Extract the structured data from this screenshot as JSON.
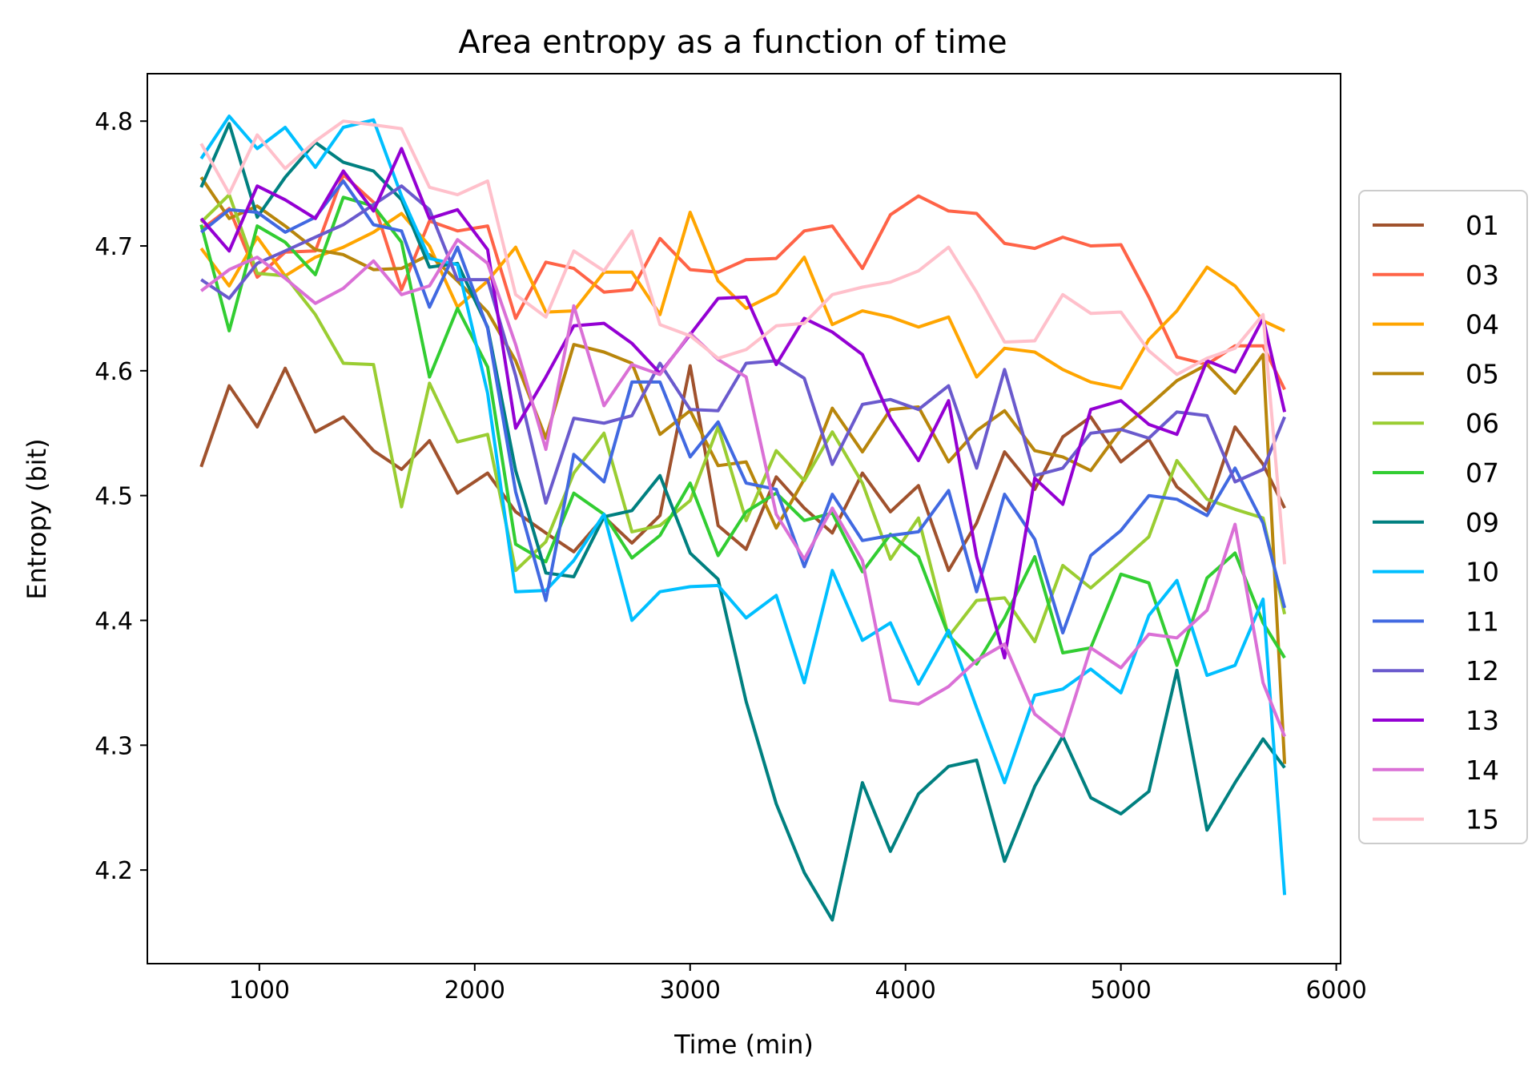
{
  "chart_data": {
    "type": "line",
    "title": "Area entropy as a function of time",
    "xlabel": "Time (min)",
    "ylabel": "Entropy (bit)",
    "xlim": [
      480,
      6020
    ],
    "ylim": [
      4.125,
      4.838
    ],
    "xticks": [
      1000,
      2000,
      3000,
      4000,
      5000,
      6000
    ],
    "yticks": [
      4.2,
      4.3,
      4.4,
      4.5,
      4.6,
      4.7,
      4.8
    ],
    "grid": false,
    "legend_position": "right",
    "x": [
      730,
      860,
      990,
      1120,
      1260,
      1390,
      1530,
      1660,
      1790,
      1920,
      2060,
      2190,
      2330,
      2460,
      2600,
      2730,
      2860,
      3000,
      3130,
      3260,
      3400,
      3530,
      3660,
      3800,
      3930,
      4060,
      4200,
      4330,
      4460,
      4600,
      4730,
      4860,
      5000,
      5130,
      5260,
      5400,
      5530,
      5660,
      5760
    ],
    "series": [
      {
        "name": "01",
        "color": "#a0522d",
        "values": [
          4.523,
          4.588,
          4.555,
          4.602,
          4.551,
          4.563,
          4.536,
          4.521,
          4.544,
          4.502,
          4.518,
          4.487,
          4.47,
          4.455,
          4.483,
          4.462,
          4.484,
          4.604,
          4.476,
          4.457,
          4.515,
          4.49,
          4.47,
          4.518,
          4.487,
          4.508,
          4.44,
          4.478,
          4.535,
          4.505,
          4.547,
          4.563,
          4.527,
          4.545,
          4.507,
          4.488,
          4.555,
          4.525,
          4.49
        ]
      },
      {
        "name": "03",
        "color": "#ff6347",
        "values": [
          4.713,
          4.73,
          4.675,
          4.695,
          4.696,
          4.757,
          4.735,
          4.665,
          4.72,
          4.712,
          4.716,
          4.642,
          4.687,
          4.682,
          4.663,
          4.665,
          4.706,
          4.681,
          4.679,
          4.689,
          4.69,
          4.712,
          4.716,
          4.682,
          4.725,
          4.74,
          4.728,
          4.726,
          4.702,
          4.698,
          4.707,
          4.7,
          4.701,
          4.659,
          4.611,
          4.605,
          4.62,
          4.62,
          4.585
        ]
      },
      {
        "name": "04",
        "color": "#ffa500",
        "values": [
          4.698,
          4.668,
          4.707,
          4.676,
          4.691,
          4.699,
          4.711,
          4.726,
          4.7,
          4.651,
          4.672,
          4.699,
          4.647,
          4.648,
          4.679,
          4.679,
          4.645,
          4.727,
          4.672,
          4.65,
          4.662,
          4.691,
          4.637,
          4.648,
          4.643,
          4.635,
          4.643,
          4.595,
          4.618,
          4.615,
          4.601,
          4.591,
          4.586,
          4.625,
          4.648,
          4.683,
          4.668,
          4.64,
          4.632
        ]
      },
      {
        "name": "05",
        "color": "#b8860b",
        "values": [
          4.755,
          4.722,
          4.732,
          4.716,
          4.697,
          4.693,
          4.681,
          4.682,
          4.693,
          4.672,
          4.647,
          4.608,
          4.546,
          4.621,
          4.615,
          4.606,
          4.549,
          4.568,
          4.524,
          4.527,
          4.474,
          4.513,
          4.57,
          4.535,
          4.569,
          4.571,
          4.527,
          4.552,
          4.568,
          4.536,
          4.531,
          4.52,
          4.553,
          4.572,
          4.592,
          4.605,
          4.582,
          4.613,
          4.285
        ]
      },
      {
        "name": "06",
        "color": "#9acd32",
        "values": [
          4.719,
          4.741,
          4.678,
          4.676,
          4.645,
          4.606,
          4.605,
          4.491,
          4.59,
          4.543,
          4.549,
          4.44,
          4.463,
          4.518,
          4.55,
          4.471,
          4.476,
          4.496,
          4.555,
          4.48,
          4.536,
          4.512,
          4.551,
          4.51,
          4.449,
          4.482,
          4.387,
          4.416,
          4.418,
          4.383,
          4.444,
          4.426,
          4.447,
          4.467,
          4.528,
          4.497,
          4.489,
          4.482,
          4.405
        ]
      },
      {
        "name": "07",
        "color": "#32cd32",
        "values": [
          4.717,
          4.632,
          4.716,
          4.703,
          4.677,
          4.739,
          4.732,
          4.703,
          4.595,
          4.65,
          4.603,
          4.461,
          4.447,
          4.502,
          4.485,
          4.45,
          4.468,
          4.51,
          4.452,
          4.487,
          4.502,
          4.48,
          4.486,
          4.439,
          4.469,
          4.451,
          4.388,
          4.365,
          4.402,
          4.451,
          4.374,
          4.378,
          4.437,
          4.43,
          4.364,
          4.434,
          4.454,
          4.398,
          4.37
        ]
      },
      {
        "name": "09",
        "color": "#008080",
        "values": [
          4.747,
          4.798,
          4.723,
          4.755,
          4.783,
          4.767,
          4.76,
          4.737,
          4.683,
          4.686,
          4.635,
          4.52,
          4.438,
          4.435,
          4.483,
          4.488,
          4.516,
          4.454,
          4.433,
          4.335,
          4.253,
          4.198,
          4.16,
          4.27,
          4.215,
          4.261,
          4.283,
          4.288,
          4.207,
          4.267,
          4.307,
          4.258,
          4.245,
          4.263,
          4.36,
          4.232,
          4.27,
          4.305,
          4.282
        ]
      },
      {
        "name": "10",
        "color": "#00bfff",
        "values": [
          4.77,
          4.804,
          4.778,
          4.795,
          4.763,
          4.795,
          4.801,
          4.74,
          4.69,
          4.685,
          4.582,
          4.423,
          4.424,
          4.448,
          4.485,
          4.4,
          4.423,
          4.427,
          4.428,
          4.402,
          4.42,
          4.35,
          4.44,
          4.384,
          4.398,
          4.349,
          4.392,
          4.33,
          4.27,
          4.34,
          4.345,
          4.361,
          4.342,
          4.404,
          4.432,
          4.356,
          4.364,
          4.417,
          4.18
        ]
      },
      {
        "name": "11",
        "color": "#4169e1",
        "values": [
          4.711,
          4.729,
          4.727,
          4.711,
          4.723,
          4.752,
          4.717,
          4.712,
          4.651,
          4.699,
          4.634,
          4.503,
          4.416,
          4.533,
          4.511,
          4.591,
          4.591,
          4.531,
          4.559,
          4.51,
          4.505,
          4.443,
          4.501,
          4.464,
          4.468,
          4.471,
          4.504,
          4.423,
          4.501,
          4.465,
          4.39,
          4.452,
          4.472,
          4.5,
          4.497,
          4.484,
          4.522,
          4.478,
          4.41
        ]
      },
      {
        "name": "12",
        "color": "#6a5acd",
        "values": [
          4.673,
          4.658,
          4.686,
          4.696,
          4.707,
          4.717,
          4.733,
          4.748,
          4.729,
          4.673,
          4.673,
          4.596,
          4.494,
          4.562,
          4.558,
          4.564,
          4.606,
          4.569,
          4.568,
          4.606,
          4.608,
          4.594,
          4.525,
          4.573,
          4.577,
          4.569,
          4.588,
          4.522,
          4.601,
          4.516,
          4.522,
          4.55,
          4.553,
          4.546,
          4.567,
          4.564,
          4.511,
          4.521,
          4.563
        ]
      },
      {
        "name": "13",
        "color": "#9400d3",
        "values": [
          4.722,
          4.696,
          4.748,
          4.737,
          4.722,
          4.76,
          4.728,
          4.778,
          4.722,
          4.729,
          4.697,
          4.554,
          4.595,
          4.636,
          4.638,
          4.622,
          4.598,
          4.629,
          4.658,
          4.659,
          4.605,
          4.642,
          4.631,
          4.613,
          4.562,
          4.528,
          4.576,
          4.451,
          4.37,
          4.514,
          4.493,
          4.569,
          4.576,
          4.557,
          4.549,
          4.608,
          4.599,
          4.642,
          4.567
        ]
      },
      {
        "name": "14",
        "color": "#da70d6",
        "values": [
          4.664,
          4.681,
          4.691,
          4.674,
          4.654,
          4.666,
          4.688,
          4.661,
          4.668,
          4.705,
          4.686,
          4.621,
          4.537,
          4.652,
          4.572,
          4.605,
          4.597,
          4.63,
          4.609,
          4.595,
          4.485,
          4.449,
          4.49,
          4.448,
          4.336,
          4.333,
          4.347,
          4.368,
          4.381,
          4.325,
          4.307,
          4.378,
          4.362,
          4.389,
          4.386,
          4.408,
          4.477,
          4.35,
          4.307
        ]
      },
      {
        "name": "15",
        "color": "#ffc0cb",
        "values": [
          4.782,
          4.742,
          4.789,
          4.762,
          4.784,
          4.8,
          4.797,
          4.794,
          4.747,
          4.741,
          4.752,
          4.661,
          4.643,
          4.696,
          4.68,
          4.712,
          4.637,
          4.628,
          4.61,
          4.617,
          4.636,
          4.638,
          4.661,
          4.667,
          4.671,
          4.68,
          4.699,
          4.663,
          4.623,
          4.624,
          4.661,
          4.646,
          4.647,
          4.616,
          4.597,
          4.61,
          4.618,
          4.645,
          4.445
        ]
      }
    ]
  }
}
